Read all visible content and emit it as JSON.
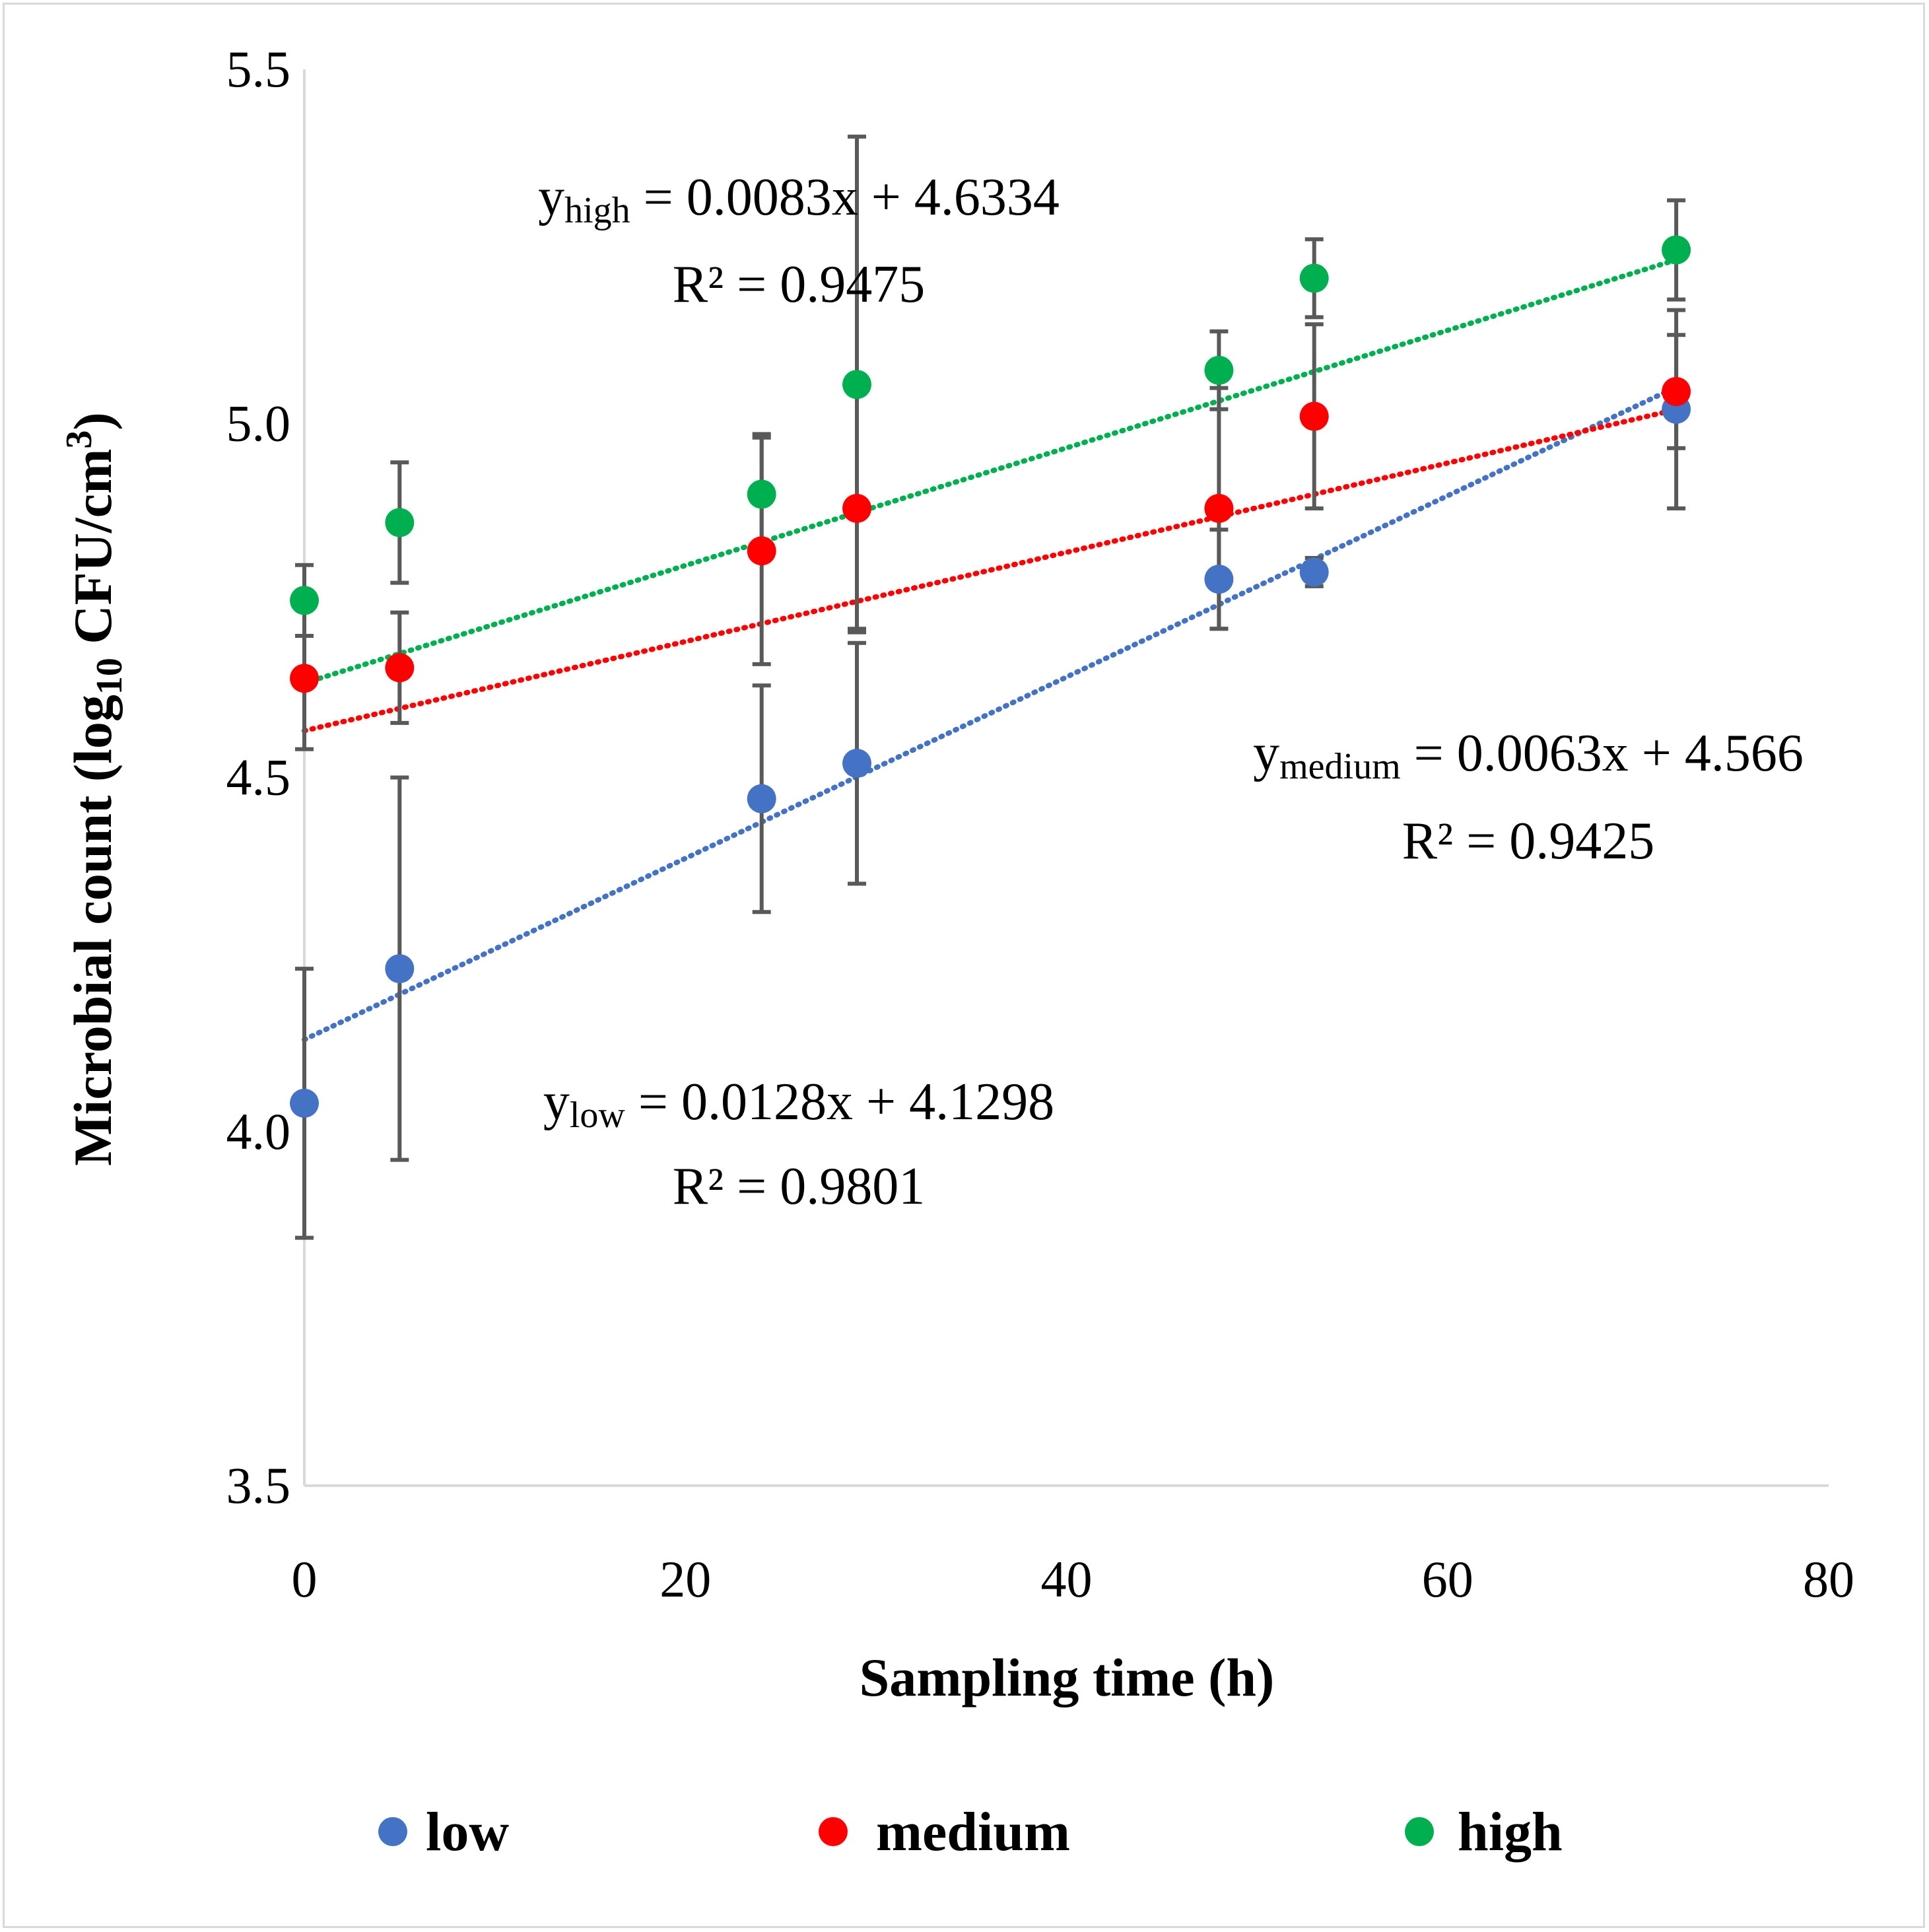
{
  "chart_data": {
    "type": "scatter",
    "title": "",
    "xlabel": "Sampling time (h)",
    "ylabel": {
      "main": "Microbial count (log",
      "sub": "10",
      "unit": " CFU/cm",
      "sup": "3",
      "close": ")"
    },
    "xlim": [
      0,
      80
    ],
    "ylim": [
      3.5,
      5.5
    ],
    "x_ticks": [
      0,
      20,
      40,
      60,
      80
    ],
    "x_tick_labels": [
      "0",
      "20",
      "40",
      "60",
      "80"
    ],
    "y_ticks": [
      3.5,
      4.0,
      4.5,
      5.0,
      5.5
    ],
    "y_tick_labels": [
      "3.5",
      "4.0",
      "4.5",
      "5.0",
      "5.5"
    ],
    "grid": false,
    "legend_position": "bottom",
    "x": [
      0,
      5,
      24,
      29,
      48,
      53,
      72
    ],
    "series": [
      {
        "name": "low",
        "color": "#4472c4",
        "values": [
          4.04,
          4.23,
          4.47,
          4.52,
          4.78,
          4.79,
          5.02
        ],
        "errors": [
          0.19,
          0.27,
          0.16,
          0.17,
          0.07,
          0.02,
          0.14
        ],
        "trendline": {
          "slope": 0.0128,
          "intercept": 4.1298,
          "r2": "0.9801"
        }
      },
      {
        "name": "medium",
        "color": "#ff0000",
        "values": [
          4.64,
          4.655,
          4.82,
          4.88,
          4.88,
          5.01,
          5.045
        ],
        "errors": [
          0.1,
          0.078,
          0.16,
          0.17,
          0.17,
          0.13,
          0.08
        ],
        "trendline": {
          "slope": 0.0063,
          "intercept": 4.566,
          "r2": "0.9425"
        }
      },
      {
        "name": "high",
        "color": "#00b050",
        "values": [
          4.75,
          4.86,
          4.9,
          5.055,
          5.075,
          5.205,
          5.245
        ],
        "errors": [
          0.05,
          0.085,
          0.085,
          0.35,
          0.055,
          0.055,
          0.07
        ],
        "trendline": {
          "slope": 0.0083,
          "intercept": 4.6334,
          "r2": "0.9475"
        }
      }
    ],
    "annotations": [
      {
        "series": "high",
        "y_base": "y",
        "y_sub": "high",
        "equation": " = 0.0083x + 4.6334",
        "r2_label": "R² = 0.9475"
      },
      {
        "series": "medium",
        "y_base": "y",
        "y_sub": "medium",
        "equation": " = 0.0063x + 4.566",
        "r2_label": "R² = 0.9425"
      },
      {
        "series": "low",
        "y_base": "y",
        "y_sub": "low",
        "equation": " = 0.0128x + 4.1298",
        "r2_label": "R² = 0.9801"
      }
    ],
    "legend": [
      "low",
      "medium",
      "high"
    ]
  },
  "colors": {
    "axis": "#d9d9d9",
    "errorbar": "#595959",
    "frame": "#d9d9d9"
  }
}
